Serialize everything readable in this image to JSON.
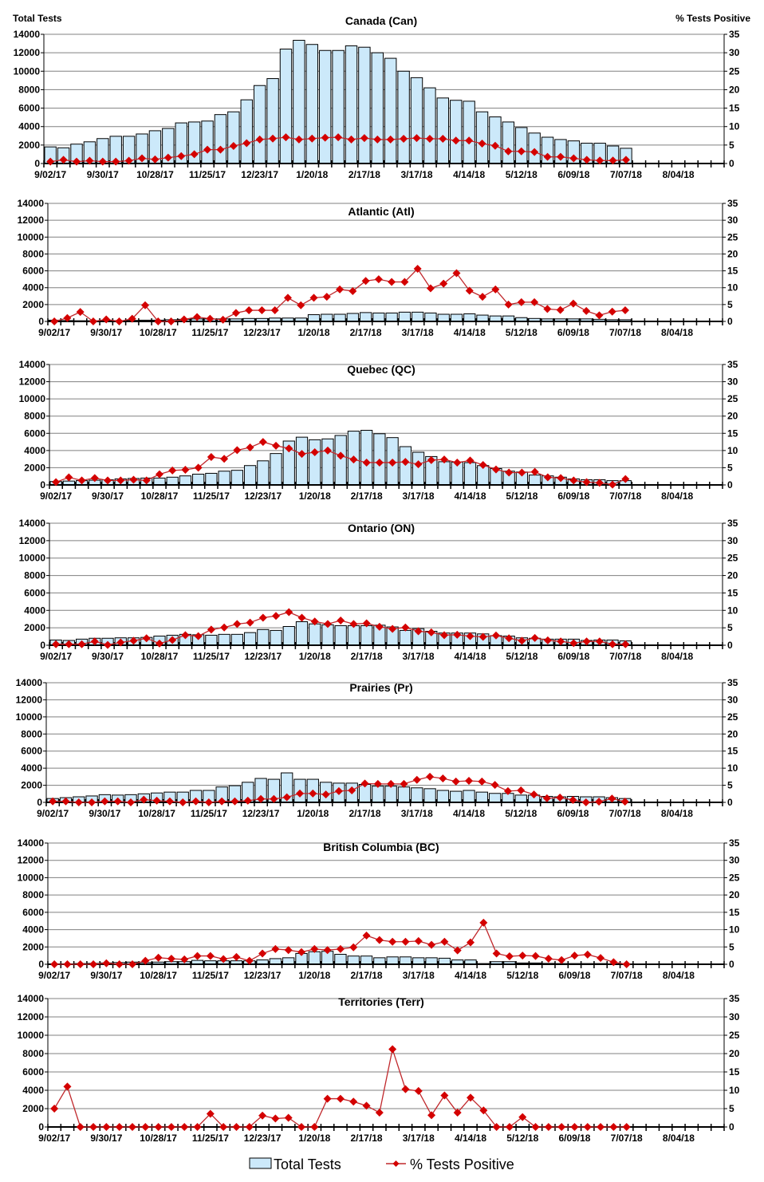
{
  "chart_data": [
    {
      "type": "bar+line",
      "title": "Canada (Can)",
      "ylabel_left": "Total Tests",
      "ylabel_right": "% Tests Positive",
      "total_tests": [
        1800,
        1700,
        2100,
        2350,
        2700,
        2950,
        2950,
        3200,
        3550,
        3800,
        4400,
        4500,
        4600,
        5300,
        5600,
        6900,
        8450,
        9200,
        12400,
        13350,
        12900,
        12250,
        12250,
        12750,
        12600,
        12000,
        11400,
        10000,
        9300,
        8200,
        7100,
        6850,
        6750,
        5600,
        5050,
        4500,
        3900,
        3300,
        2850,
        2600,
        2450,
        2200,
        2200,
        1900,
        1650
      ],
      "pct_positive": [
        0.5,
        1,
        0.5,
        0.75,
        0.5,
        0.5,
        0.75,
        1.4,
        1.1,
        1.6,
        2,
        2.5,
        3.75,
        3.75,
        4.75,
        5.5,
        6.5,
        6.75,
        7.1,
        6.5,
        6.75,
        7,
        7.1,
        6.5,
        6.9,
        6.5,
        6.5,
        6.7,
        6.9,
        6.7,
        6.7,
        6.2,
        6.2,
        5.4,
        4.8,
        3.3,
        3.3,
        3.1,
        1.8,
        1.8,
        1.4,
        1.0,
        0.8,
        0.8,
        1.0
      ]
    },
    {
      "type": "bar+line",
      "title": "Atlantic (Atl)",
      "total_tests": [
        150,
        100,
        80,
        80,
        100,
        100,
        120,
        150,
        150,
        200,
        250,
        300,
        300,
        300,
        300,
        350,
        350,
        400,
        400,
        400,
        800,
        850,
        850,
        950,
        1050,
        1000,
        1000,
        1100,
        1100,
        1000,
        850,
        850,
        900,
        750,
        650,
        650,
        450,
        350,
        300,
        300,
        300,
        300,
        250,
        200,
        200
      ],
      "pct_positive": [
        0,
        1,
        2.8,
        0,
        0.6,
        0,
        0.8,
        4.8,
        0,
        0,
        0.6,
        1.3,
        0.8,
        0.5,
        2.5,
        3.3,
        3.3,
        3.3,
        7,
        4.8,
        7,
        7.3,
        9.5,
        9,
        12,
        12.5,
        11.7,
        11.7,
        15.6,
        9.8,
        11.2,
        14.3,
        9.1,
        7.3,
        9.5,
        5,
        5.7,
        5.7,
        3.7,
        3.4,
        5.3,
        3.1,
        1.8,
        2.9,
        3.3
      ]
    },
    {
      "type": "bar+line",
      "title": "Quebec (QC)",
      "total_tests": [
        400,
        450,
        500,
        550,
        600,
        700,
        750,
        800,
        800,
        900,
        1050,
        1250,
        1350,
        1600,
        1700,
        2250,
        2800,
        3650,
        5100,
        5550,
        5250,
        5350,
        5750,
        6250,
        6350,
        5950,
        5500,
        4450,
        3800,
        3300,
        2700,
        2650,
        2600,
        2250,
        1900,
        1600,
        1500,
        1150,
        1050,
        900,
        700,
        600,
        600,
        500,
        500
      ],
      "pct_positive": [
        0.8,
        2.2,
        1.3,
        2,
        1.3,
        1.3,
        1.5,
        1.3,
        3.1,
        4.2,
        4.4,
        5,
        8.1,
        7.6,
        10.1,
        10.9,
        12.5,
        11.4,
        10.6,
        9,
        9.5,
        10,
        8.5,
        7.4,
        6.5,
        6.5,
        6.5,
        6.7,
        6,
        7.2,
        7.4,
        6.5,
        7.1,
        5.8,
        4.5,
        3.6,
        3.6,
        3.8,
        2.2,
        2,
        1.3,
        0.8,
        0.6,
        0.1,
        1.7
      ]
    },
    {
      "type": "bar+line",
      "title": "Ontario (ON)",
      "total_tests": [
        600,
        550,
        700,
        800,
        800,
        850,
        850,
        900,
        1050,
        1150,
        1250,
        1200,
        1150,
        1250,
        1250,
        1450,
        1800,
        1700,
        2150,
        2700,
        2450,
        2350,
        2250,
        2250,
        2250,
        2300,
        2100,
        1700,
        1900,
        1600,
        1400,
        1400,
        1400,
        1300,
        1100,
        1050,
        850,
        800,
        700,
        700,
        700,
        550,
        600,
        600,
        500
      ],
      "pct_positive": [
        0.3,
        0.3,
        0.3,
        1.1,
        0.1,
        0.8,
        1.3,
        2,
        0.5,
        1.5,
        2.9,
        2.6,
        4.5,
        5.1,
        6.1,
        6.5,
        7.9,
        8.4,
        9.5,
        7.9,
        6.8,
        6.1,
        7.1,
        6.1,
        6.3,
        5.3,
        4.7,
        5.1,
        4,
        3.7,
        2.9,
        3,
        2.6,
        2.4,
        2.8,
        2,
        1.3,
        2.1,
        1.4,
        1.1,
        0.6,
        1.1,
        1.1,
        0.3,
        0.3
      ]
    },
    {
      "type": "bar+line",
      "title": "Prairies (Pr)",
      "total_tests": [
        450,
        550,
        650,
        750,
        900,
        850,
        900,
        1000,
        1100,
        1200,
        1200,
        1400,
        1400,
        1800,
        1950,
        2350,
        2800,
        2700,
        3450,
        2700,
        2700,
        2350,
        2250,
        2250,
        2100,
        1900,
        1900,
        1800,
        1700,
        1600,
        1400,
        1300,
        1400,
        1200,
        1050,
        1050,
        850,
        850,
        700,
        650,
        700,
        650,
        650,
        550,
        450
      ],
      "pct_positive": [
        0.3,
        0.3,
        0,
        0,
        0.3,
        0.3,
        0,
        0.8,
        0.5,
        0.3,
        0,
        0.3,
        0,
        0.3,
        0.3,
        0.5,
        1,
        1,
        1.5,
        2.6,
        2.6,
        2.3,
        3.3,
        3.5,
        5.5,
        5.4,
        5.4,
        5.4,
        6.6,
        7.5,
        7,
        6.1,
        6.3,
        6.1,
        5.1,
        3.3,
        3.5,
        2.3,
        1.2,
        1.4,
        0.7,
        0,
        0.2,
        1.1,
        0.2
      ]
    },
    {
      "type": "bar+line",
      "title": "British Columbia (BC)",
      "total_tests": [
        50,
        50,
        80,
        100,
        150,
        200,
        250,
        200,
        250,
        300,
        300,
        450,
        400,
        400,
        400,
        400,
        500,
        650,
        750,
        1250,
        1450,
        1500,
        1150,
        950,
        950,
        750,
        850,
        850,
        750,
        750,
        700,
        500,
        500,
        80,
        300,
        300,
        150,
        150,
        100,
        80,
        80,
        80,
        80,
        50,
        50
      ],
      "pct_positive": [
        0,
        0,
        0,
        0,
        0.3,
        0,
        0,
        1,
        1.9,
        1.6,
        1.4,
        2.4,
        2.4,
        1.5,
        2.1,
        1,
        3.1,
        4.4,
        4.1,
        3.5,
        4.4,
        4.1,
        4.4,
        4.9,
        8.3,
        7,
        6.5,
        6.5,
        6.7,
        5.6,
        6.5,
        4,
        6.3,
        12,
        3.1,
        2.3,
        2.5,
        2.4,
        1.6,
        1.2,
        2.5,
        2.8,
        1.8,
        0.6,
        0
      ]
    },
    {
      "type": "bar+line",
      "title": "Territories (Terr)",
      "total_tests": [
        10,
        10,
        10,
        10,
        10,
        10,
        10,
        10,
        10,
        10,
        10,
        10,
        10,
        10,
        10,
        10,
        10,
        10,
        10,
        10,
        10,
        10,
        10,
        10,
        10,
        10,
        10,
        10,
        10,
        10,
        10,
        10,
        10,
        10,
        10,
        10,
        10,
        10,
        10,
        10,
        10,
        10,
        10,
        10,
        10
      ],
      "pct_positive": [
        5,
        11,
        0,
        0,
        0,
        0,
        0,
        0,
        0,
        0,
        0,
        0,
        3.6,
        0,
        0,
        0,
        3.1,
        2.3,
        2.5,
        0,
        0,
        7.7,
        7.7,
        6.9,
        5.8,
        3.9,
        21.2,
        10.3,
        9.8,
        3.2,
        8.6,
        3.9,
        8,
        4.5,
        0,
        0,
        2.7,
        0,
        0,
        0,
        0,
        0,
        0,
        0,
        0
      ]
    }
  ],
  "x_tick_labels": [
    "9/02/17",
    "9/30/17",
    "10/28/17",
    "11/25/17",
    "12/23/17",
    "1/20/18",
    "2/17/18",
    "3/17/18",
    "4/14/18",
    "5/12/18",
    "6/09/18",
    "7/07/18",
    "8/04/18"
  ],
  "y_left": {
    "ticks": [
      0,
      2000,
      4000,
      6000,
      8000,
      10000,
      12000,
      14000
    ],
    "range": [
      0,
      14000
    ]
  },
  "y_right": {
    "ticks": [
      0,
      5,
      10,
      15,
      20,
      25,
      30,
      35
    ],
    "range": [
      0,
      35
    ]
  },
  "grid": true,
  "legend": {
    "position": "bottom",
    "bars": "Total Tests",
    "line": "% Tests Positive"
  },
  "colors": {
    "bar_fill": "#cce9fa",
    "bar_stroke": "#000000",
    "line": "#c0282c",
    "marker": "#d40000",
    "grid": "#808080"
  }
}
